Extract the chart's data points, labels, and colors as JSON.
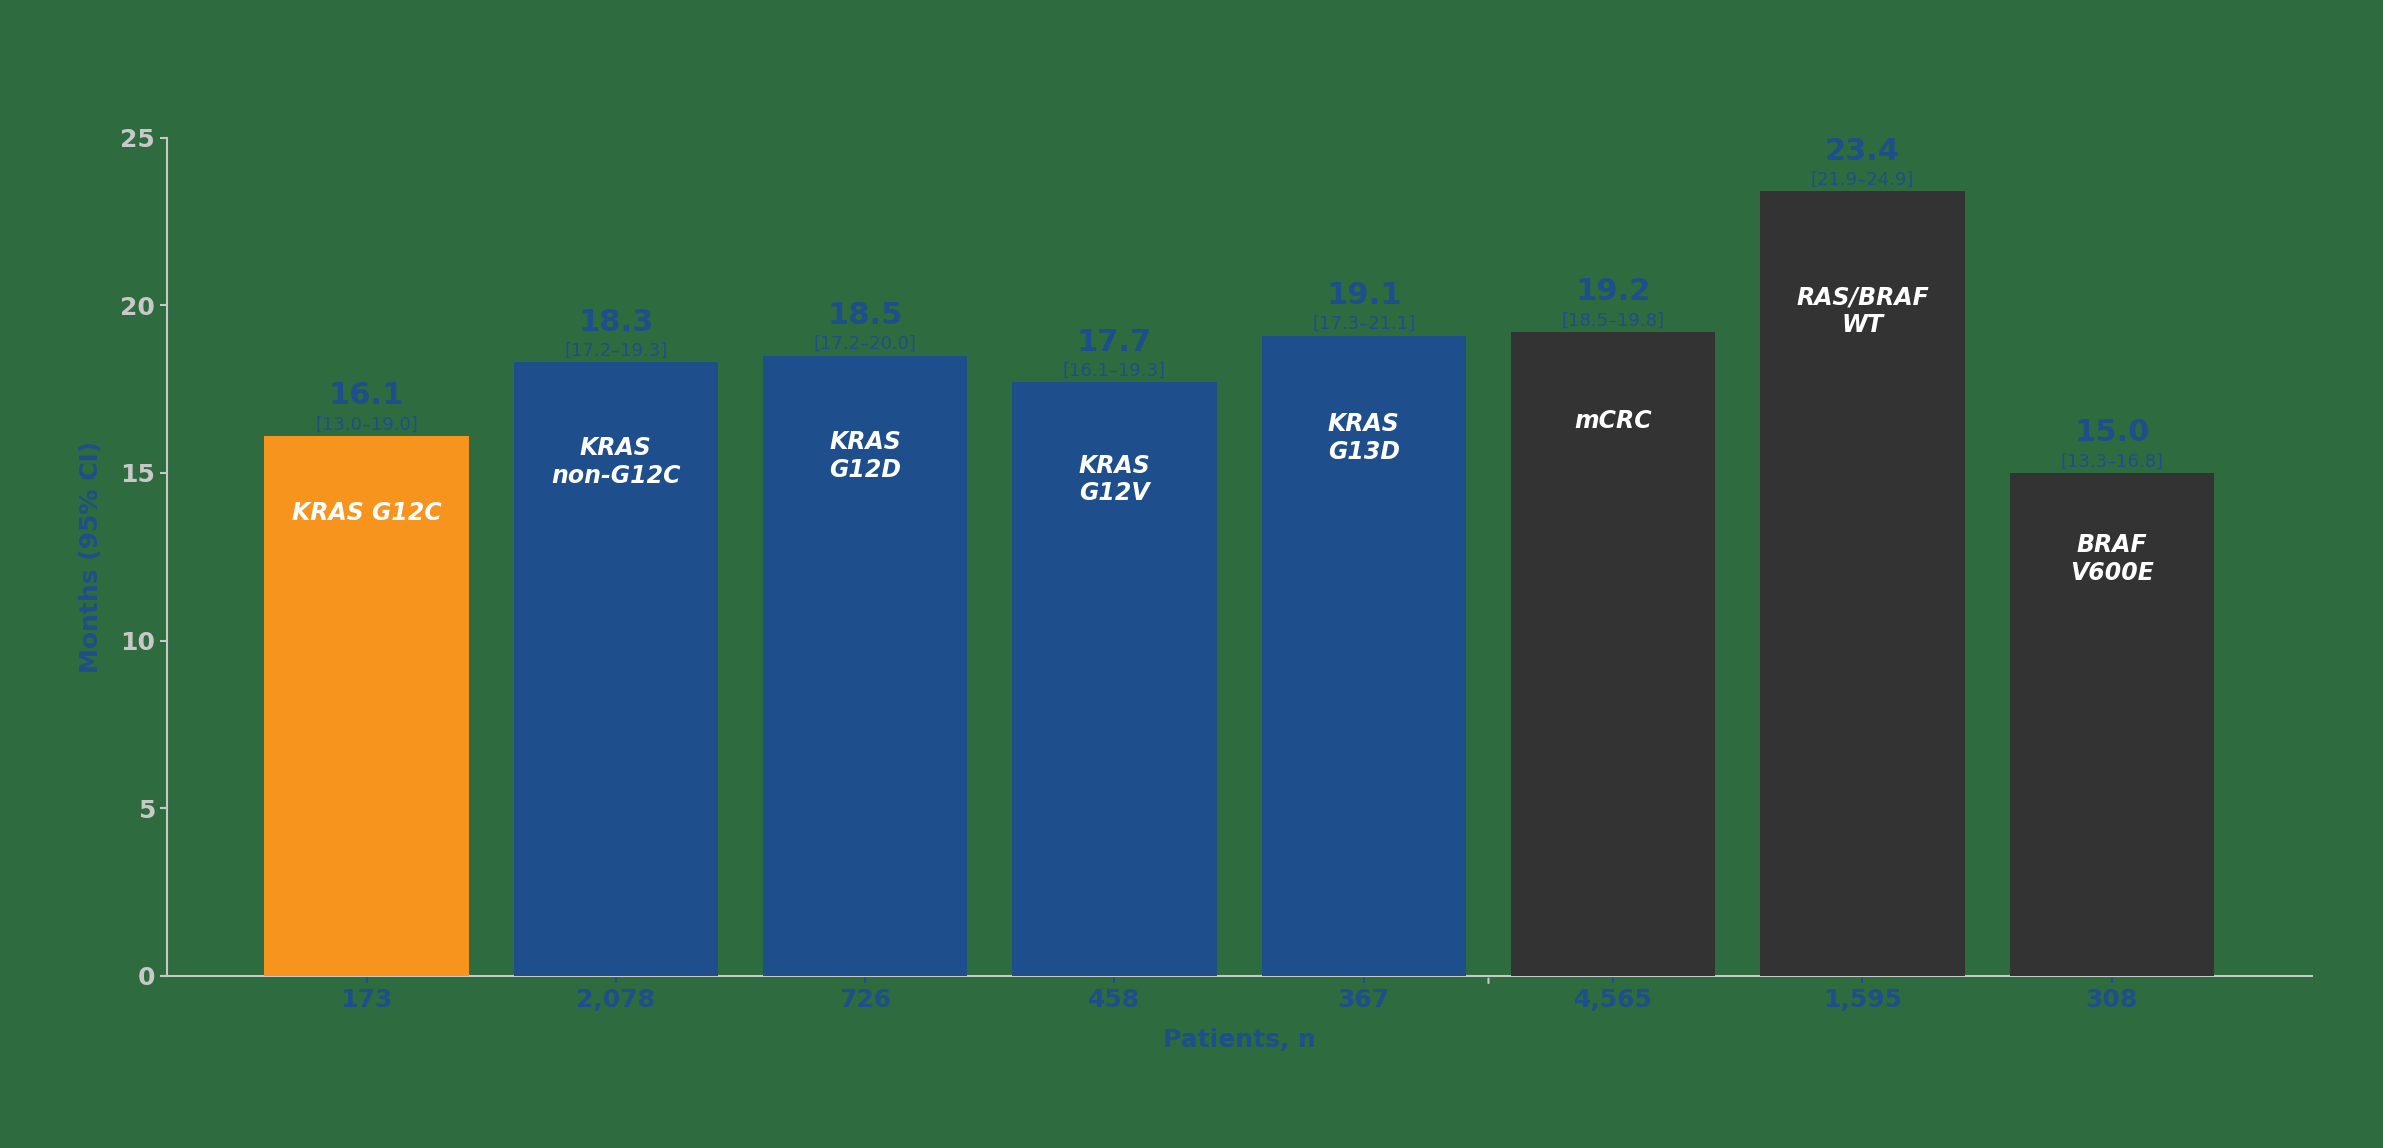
{
  "categories": [
    "KRAS G12C",
    "KRAS\nnon-G12C",
    "KRAS\nG12D",
    "KRAS\nG12V",
    "KRAS\nG13D",
    "mCRC",
    "RAS/BRAF\nWT",
    "BRAF\nV600E"
  ],
  "values": [
    16.1,
    18.3,
    18.5,
    17.7,
    19.1,
    19.2,
    23.4,
    15.0
  ],
  "ci_labels": [
    "[13.0–19.0]",
    "[17.2–19.3]",
    "[17.2–20.0]",
    "[16.1–19.3]",
    "[17.3–21.1]",
    "[18.5–19.8]",
    "[21.9–24.9]",
    "[13.3–16.8]"
  ],
  "patients": [
    "173",
    "2,078",
    "726",
    "458",
    "367",
    "4,565",
    "1,595",
    "308"
  ],
  "bar_colors": [
    "#F7941D",
    "#1F4E8C",
    "#1F4E8C",
    "#1F4E8C",
    "#1F4E8C",
    "#333333",
    "#333333",
    "#333333"
  ],
  "bar_label_colors": [
    "white",
    "white",
    "white",
    "white",
    "white",
    "white",
    "white",
    "white"
  ],
  "value_label_color": "#1F4E8C",
  "patient_label_color": "#1F4E8C",
  "background_color": "#2E6B3E",
  "ytick_color": "#C8C8C8",
  "ylabel": "Months (95% CI)",
  "xlabel": "Patients, n",
  "ylim": [
    0,
    25
  ],
  "yticks": [
    0,
    5,
    10,
    15,
    20,
    25
  ],
  "bar_label_fontsize": 17,
  "value_fontsize": 22,
  "ci_fontsize": 13,
  "patient_fontsize": 18,
  "axis_label_fontsize": 18,
  "ytick_fontsize": 18,
  "bar_width": 0.82
}
